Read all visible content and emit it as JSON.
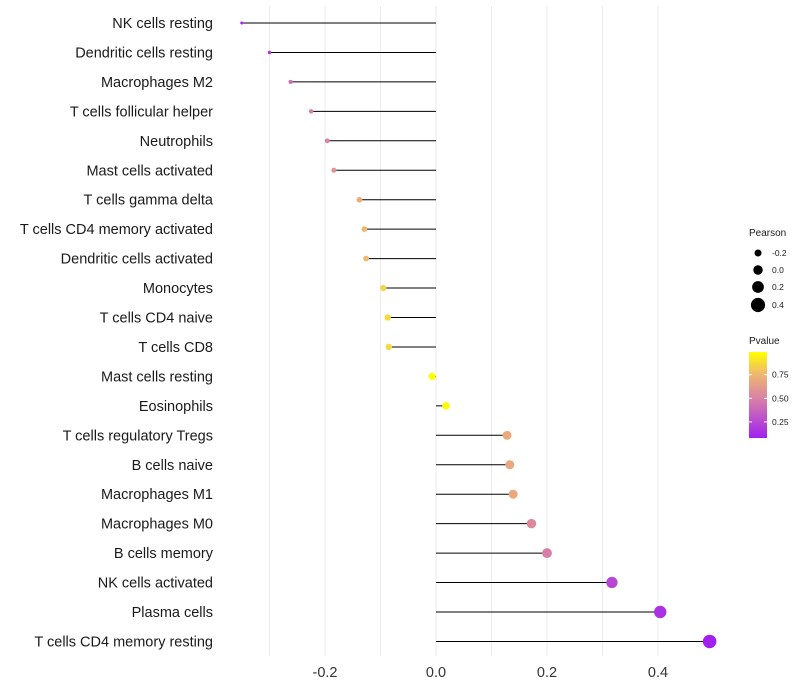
{
  "chart_data": {
    "type": "lollipop",
    "title": "",
    "xlabel": "",
    "ylabel": "",
    "xlim": [
      -0.35,
      0.5
    ],
    "x_ticks": [
      -0.2,
      0.0,
      0.2,
      0.4
    ],
    "x_tick_labels": [
      "-0.2",
      "0.0",
      "0.2",
      "0.4"
    ],
    "categories": [
      "NK cells resting",
      "Dendritic cells resting",
      "Macrophages M2",
      "T cells follicular helper",
      "Neutrophils",
      "Mast cells activated",
      "T cells gamma delta",
      "T cells CD4 memory activated",
      "Dendritic cells activated",
      "Monocytes",
      "T cells CD4 naive",
      "T cells CD8",
      "Mast cells resting",
      "Eosinophils",
      "T cells regulatory  Tregs ",
      "B cells naive",
      "Macrophages M1",
      "Macrophages M0",
      "B cells memory",
      "NK cells activated",
      "Plasma cells",
      "T cells CD4 memory resting"
    ],
    "pearson": [
      -0.35,
      -0.3,
      -0.262,
      -0.225,
      -0.196,
      -0.184,
      -0.138,
      -0.129,
      -0.126,
      -0.095,
      -0.087,
      -0.085,
      -0.007,
      0.018,
      0.128,
      0.133,
      0.139,
      0.172,
      0.2,
      0.317,
      0.404,
      0.493
    ],
    "pvalue": [
      0.12,
      0.22,
      0.42,
      0.5,
      0.52,
      0.6,
      0.72,
      0.78,
      0.79,
      0.86,
      0.88,
      0.88,
      0.99,
      0.98,
      0.71,
      0.7,
      0.7,
      0.55,
      0.5,
      0.25,
      0.16,
      0.08
    ],
    "legend": {
      "size": {
        "title": "Pearson",
        "breaks": [
          -0.2,
          0.0,
          0.2,
          0.4
        ],
        "labels": [
          "-0.2",
          "0.0",
          "0.2",
          "0.4"
        ]
      },
      "color": {
        "title": "Pvalue",
        "breaks": [
          0.25,
          0.5,
          0.75
        ],
        "labels": [
          "0.25",
          "0.50",
          "0.75"
        ],
        "range": [
          0.08,
          0.99
        ],
        "low_color": "#a020f0",
        "mid_color": "#d87fa8",
        "high_color": "#f0b86e",
        "top_color": "#ffff00"
      }
    },
    "grid": true,
    "legend_position": "right",
    "stem_color": "#000000"
  }
}
